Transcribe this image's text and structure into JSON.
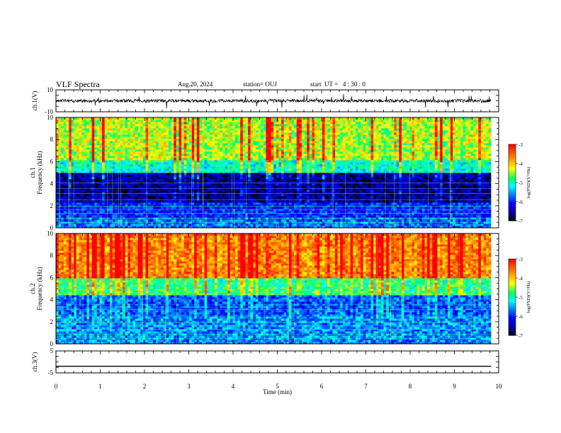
{
  "header": {
    "title": "VLF Spectra",
    "date": "Aug.20, 2024",
    "station": "station= OUJ",
    "start_time": "start  UT =   4 : 30 : 0"
  },
  "colors": {
    "background": "#ffffff",
    "axes": "#000000",
    "trace": "#000000",
    "colormap": [
      "#000000",
      "#00008b",
      "#0000ff",
      "#0080ff",
      "#00ffff",
      "#00ff66",
      "#ffff00",
      "#ff8c00",
      "#ff0000",
      "#ffffff"
    ]
  },
  "chart_data": [
    {
      "type": "line",
      "panel": "ch1-waveform",
      "ylabel": "ch.1(V)",
      "ylim": [
        -10,
        10
      ],
      "yticks": [
        "10",
        "-10"
      ],
      "xlim": [
        0,
        10
      ],
      "baseline": 0,
      "description_values": {
        "noise_amplitude_V": 1.5,
        "spike_amplitude_V": 5
      }
    },
    {
      "type": "heatmap",
      "panel": "ch1-spectrogram",
      "ylabel": "ch.1\nFrequency (kHz)",
      "ylabel_top": "ch.1",
      "ylabel_bottom": "Frequency (kHz)",
      "ylim": [
        0,
        10
      ],
      "yticks": [
        "0",
        "2",
        "4",
        "6",
        "8",
        "10"
      ],
      "xlim": [
        0,
        9.83
      ],
      "colorbar": {
        "label": "log(PSD)(V²/Hz)",
        "range": [
          -7,
          -3
        ],
        "ticks": [
          "-3",
          "-4",
          "-5",
          "-6",
          "-7"
        ]
      },
      "bands": [
        {
          "f_min": 0,
          "f_max": 1,
          "logpsd": -5.7
        },
        {
          "f_min": 1,
          "f_max": 2.4,
          "logpsd": -6.0
        },
        {
          "f_min": 2.4,
          "f_max": 5,
          "logpsd": -6.7
        },
        {
          "f_min": 5,
          "f_max": 6.2,
          "logpsd": -5.2
        },
        {
          "f_min": 6.2,
          "f_max": 10,
          "logpsd": -4.6
        }
      ]
    },
    {
      "type": "heatmap",
      "panel": "ch2-spectrogram",
      "ylabel": "ch.2\nFrequency (kHz)",
      "ylabel_top": "ch.2",
      "ylabel_bottom": "Frequency (kHz)",
      "ylim": [
        0,
        10
      ],
      "yticks": [
        "0",
        "2",
        "4",
        "6",
        "8",
        "10"
      ],
      "xlim": [
        0,
        9.83
      ],
      "colorbar": {
        "label": "log(PSD)(V²/Hz)",
        "range": [
          -7,
          -3
        ],
        "ticks": [
          "-3",
          "-4",
          "-5",
          "-6",
          "-7"
        ]
      },
      "bands": [
        {
          "f_min": 0,
          "f_max": 2.5,
          "logpsd": -5.6
        },
        {
          "f_min": 2.5,
          "f_max": 4.5,
          "logpsd": -5.9
        },
        {
          "f_min": 4.5,
          "f_max": 6,
          "logpsd": -5.0
        },
        {
          "f_min": 6,
          "f_max": 10,
          "logpsd": -3.9
        }
      ]
    },
    {
      "type": "line",
      "panel": "ch3-waveform",
      "ylabel": "ch.3(V)",
      "ylim": [
        -5,
        5
      ],
      "yticks": [
        "5",
        "-5"
      ],
      "xlim": [
        0,
        9.83
      ],
      "x": [
        0,
        9.83
      ],
      "y": [
        -2,
        -2
      ]
    }
  ],
  "time_axis": {
    "xlabel": "Time (min)",
    "range": [
      0,
      10
    ],
    "ticks": [
      "0",
      "1",
      "2",
      "3",
      "4",
      "5",
      "6",
      "7",
      "8",
      "9",
      "10"
    ]
  }
}
